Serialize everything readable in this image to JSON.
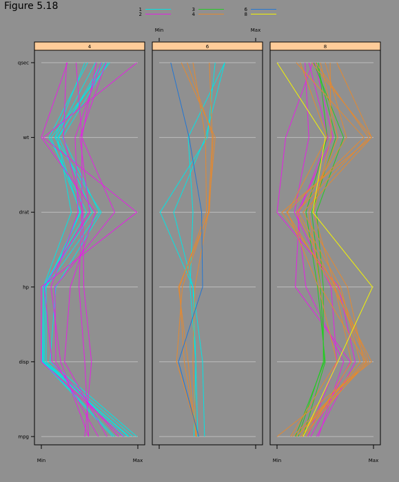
{
  "figure_label": "Figure 5.18",
  "colors": {
    "background": "#909090",
    "strip": "#FFCC99",
    "grid": "#BEBEBE",
    "carb_1": "#00E5E5",
    "carb_2": "#E51FE5",
    "carb_3": "#22CC22",
    "carb_4": "#E5892F",
    "carb_6": "#2276D4",
    "carb_8": "#F5F500"
  },
  "chart_data": {
    "type": "parallel",
    "variables": [
      "qsec",
      "wt",
      "drat",
      "hp",
      "disp",
      "mpg"
    ],
    "scale_labels": {
      "min": "Min",
      "max": "Max"
    },
    "legend": {
      "placement": "top",
      "entries": [
        {
          "label": "1",
          "color_key": "carb_1"
        },
        {
          "label": "2",
          "color_key": "carb_2"
        },
        {
          "label": "3",
          "color_key": "carb_3"
        },
        {
          "label": "4",
          "color_key": "carb_4"
        },
        {
          "label": "6",
          "color_key": "carb_6"
        },
        {
          "label": "8",
          "color_key": "carb_8"
        }
      ]
    },
    "panels": [
      {
        "strip": "4",
        "series": [
          {
            "group": "1",
            "values": [
              0.66,
              0.17,
              0.31,
              0.02,
              0.02,
              0.91
            ]
          },
          {
            "group": "1",
            "values": [
              0.71,
              0.1,
              0.41,
              0.04,
              0.03,
              0.9
            ]
          },
          {
            "group": "1",
            "values": [
              0.63,
              0.18,
              0.53,
              0.02,
              0.02,
              0.76
            ]
          },
          {
            "group": "1",
            "values": [
              0.56,
              0.15,
              0.4,
              0.05,
              0.05,
              0.95
            ]
          },
          {
            "group": "1",
            "values": [
              0.45,
              0.14,
              0.62,
              0.15,
              0.09,
              0.99
            ]
          },
          {
            "group": "1",
            "values": [
              0.48,
              0.08,
              0.47,
              0.02,
              0.01,
              0.74
            ]
          },
          {
            "group": "1",
            "values": [
              0.69,
              0.22,
              0.6,
              0.05,
              0.05,
              0.86
            ]
          },
          {
            "group": "2",
            "values": [
              0.26,
              0.23,
              0.43,
              0.44,
              0.52,
              0.45
            ]
          },
          {
            "group": "2",
            "values": [
              0.36,
              0.42,
              0.42,
              0.39,
              0.45,
              0.49
            ]
          },
          {
            "group": "2",
            "values": [
              0.67,
              0.4,
              0.5,
              0.03,
              0.11,
              0.8
            ]
          },
          {
            "group": "2",
            "values": [
              0.99,
              0.02,
              0.99,
              0.0,
              0.0,
              0.85
            ]
          },
          {
            "group": "2",
            "values": [
              0.62,
              0.35,
              0.38,
              0.1,
              0.2,
              0.49
            ]
          },
          {
            "group": "2",
            "values": [
              0.27,
              0.0,
              0.56,
              0.3,
              0.24,
              0.68
            ]
          },
          {
            "group": "2",
            "values": [
              0.57,
              0.42,
              0.76,
              0.14,
              0.15,
              0.59
            ]
          }
        ]
      },
      {
        "strip": "6",
        "series": [
          {
            "group": "1",
            "values": [
              0.58,
              0.5,
              0.01,
              0.35,
              0.45,
              0.47
            ]
          },
          {
            "group": "1",
            "values": [
              0.68,
              0.48,
              0.15,
              0.35,
              0.38,
              0.36
            ]
          },
          {
            "group": "1",
            "values": [
              0.68,
              0.3,
              0.35,
              0.32,
              0.38,
              0.4
            ]
          },
          {
            "group": "4",
            "values": [
              0.23,
              0.58,
              0.51,
              0.37,
              0.35,
              0.38
            ]
          },
          {
            "group": "4",
            "values": [
              0.29,
              0.56,
              0.52,
              0.2,
              0.3,
              0.38
            ]
          },
          {
            "group": "4",
            "values": [
              0.35,
              0.48,
              0.49,
              0.21,
              0.26,
              0.39
            ]
          },
          {
            "group": "4",
            "values": [
              0.52,
              0.55,
              0.51,
              0.24,
              0.18,
              0.41
            ]
          },
          {
            "group": "6",
            "values": [
              0.12,
              0.31,
              0.44,
              0.45,
              0.2,
              0.41
            ]
          }
        ]
      },
      {
        "strip": "8",
        "series": [
          {
            "group": "2",
            "values": [
              0.29,
              0.33,
              0.18,
              0.56,
              0.62,
              0.32
            ]
          },
          {
            "group": "2",
            "values": [
              0.39,
              0.58,
              0.21,
              0.3,
              0.69,
              0.43
            ]
          },
          {
            "group": "2",
            "values": [
              0.33,
              0.53,
              0.23,
              0.19,
              0.76,
              0.35
            ]
          },
          {
            "group": "2",
            "values": [
              0.37,
              0.09,
              0.0,
              0.64,
              0.81,
              0.41
            ]
          },
          {
            "group": "3",
            "values": [
              0.38,
              0.69,
              0.41,
              0.48,
              0.48,
              0.22
            ]
          },
          {
            "group": "3",
            "values": [
              0.41,
              0.61,
              0.36,
              0.45,
              0.49,
              0.19
            ]
          },
          {
            "group": "3",
            "values": [
              0.43,
              0.52,
              0.3,
              0.42,
              0.5,
              0.27
            ]
          },
          {
            "group": "4",
            "values": [
              0.2,
              0.9,
              0.1,
              0.58,
              0.98,
              0.0
            ]
          },
          {
            "group": "4",
            "values": [
              0.36,
              0.98,
              0.05,
              0.63,
              0.95,
              0.2
            ]
          },
          {
            "group": "4",
            "values": [
              0.4,
              0.95,
              0.2,
              0.6,
              0.93,
              0.16
            ]
          },
          {
            "group": "4",
            "values": [
              0.5,
              0.72,
              0.22,
              0.66,
              0.86,
              0.24
            ]
          },
          {
            "group": "4",
            "values": [
              0.55,
              0.56,
              0.38,
              0.6,
              0.77,
              0.3
            ]
          },
          {
            "group": "4",
            "values": [
              0.62,
              0.98,
              0.27,
              0.73,
              0.9,
              0.2
            ]
          },
          {
            "group": "4",
            "values": [
              0.24,
              0.52,
              0.11,
              0.43,
              0.62,
              0.14
            ]
          },
          {
            "group": "4",
            "values": [
              0.45,
              0.63,
              0.33,
              0.45,
              0.92,
              0.26
            ]
          },
          {
            "group": "8",
            "values": [
              0.0,
              0.5,
              0.37,
              0.99,
              0.63,
              0.27
            ]
          }
        ]
      }
    ]
  }
}
